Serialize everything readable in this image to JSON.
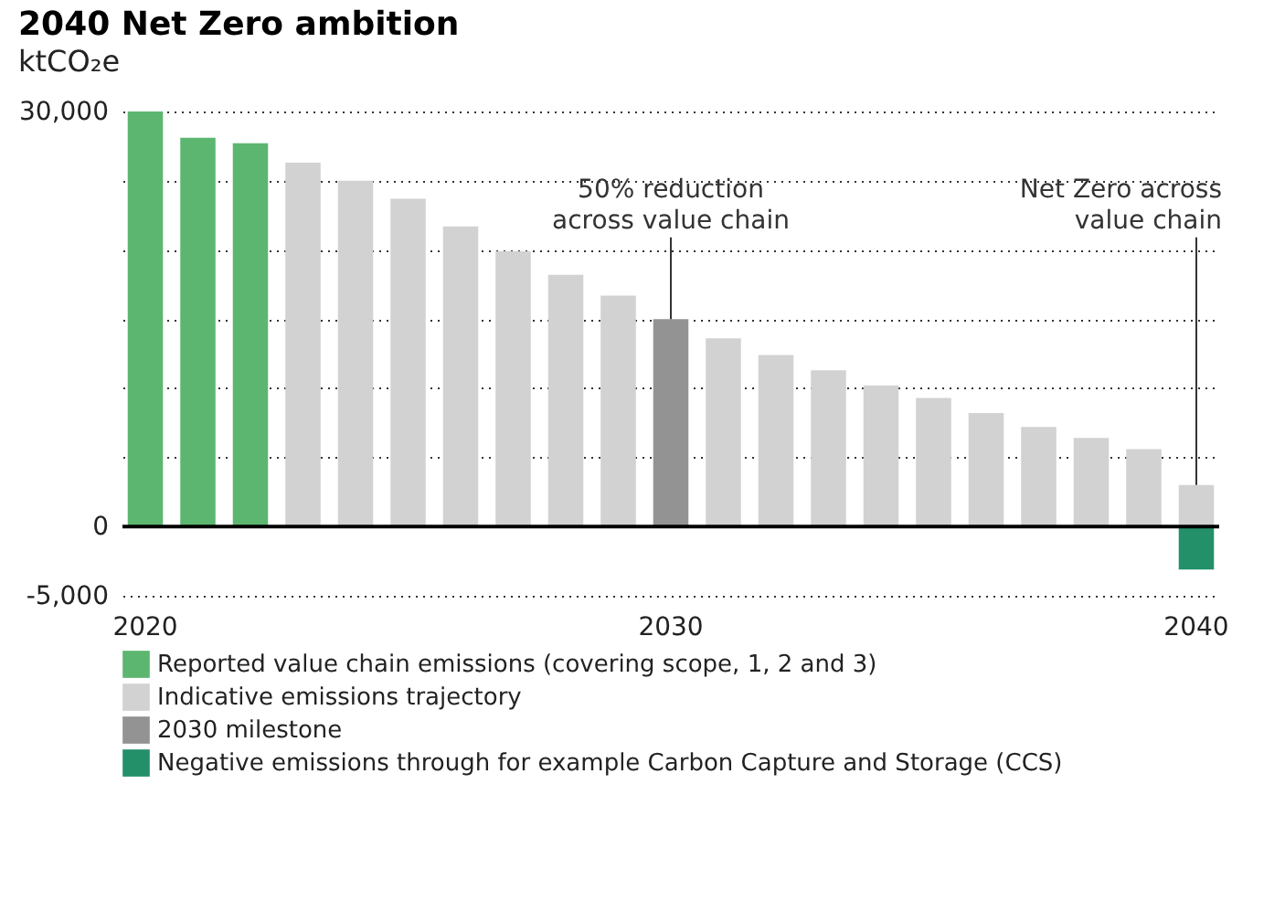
{
  "chart_data": {
    "type": "bar",
    "title": "2040 Net Zero ambition",
    "subtitle": "ktCO₂e",
    "categories": [
      "2020",
      null,
      null,
      null,
      null,
      null,
      null,
      null,
      null,
      null,
      "2030",
      null,
      null,
      null,
      null,
      null,
      null,
      null,
      null,
      null,
      "2040"
    ],
    "stacked": true,
    "series": [
      {
        "name": "Reported value chain emissions (covering scope, 1, 2 and 3)",
        "color": "#5cb670",
        "values": [
          30000,
          28100,
          27700,
          null,
          null,
          null,
          null,
          null,
          null,
          null,
          null,
          null,
          null,
          null,
          null,
          null,
          null,
          null,
          null,
          null,
          null
        ]
      },
      {
        "name": "Indicative emissions trajectory",
        "color": "#d2d2d2",
        "values": [
          null,
          null,
          null,
          26300,
          25000,
          23700,
          21700,
          19900,
          18200,
          16700,
          null,
          13600,
          12400,
          11300,
          10200,
          9300,
          8200,
          7200,
          6400,
          5600,
          3000
        ]
      },
      {
        "name": "2030 milestone",
        "color": "#939393",
        "values": [
          null,
          null,
          null,
          null,
          null,
          null,
          null,
          null,
          null,
          null,
          15000,
          null,
          null,
          null,
          null,
          null,
          null,
          null,
          null,
          null,
          null
        ]
      },
      {
        "name": "Negative emissions through for example Carbon Capture and Storage (CCS)",
        "color": "#24906a",
        "values": [
          null,
          null,
          null,
          null,
          null,
          null,
          null,
          null,
          null,
          null,
          null,
          null,
          null,
          null,
          null,
          null,
          null,
          null,
          null,
          null,
          -3100
        ]
      }
    ],
    "ylim": [
      -5000,
      30000
    ],
    "yticks": [
      {
        "value": -5000,
        "label": "-5,000"
      },
      0,
      {
        "value": 5000,
        "label": null
      },
      {
        "value": 10000,
        "label": null
      },
      {
        "value": 15000,
        "label": null
      },
      {
        "value": 20000,
        "label": null
      },
      {
        "value": 25000,
        "label": null
      },
      {
        "value": 30000,
        "label": "30,000"
      }
    ],
    "grid": "y",
    "ref_lines": [
      {
        "axis": "y",
        "value": 0,
        "color": "#000000"
      }
    ],
    "legend": "bottom",
    "annotations": [
      {
        "text": "50% reduction\nacross value chain",
        "x": "2030",
        "y": 15000
      },
      {
        "text": "Net Zero across\nvalue chain",
        "x": "2040",
        "y": 3000
      }
    ]
  }
}
